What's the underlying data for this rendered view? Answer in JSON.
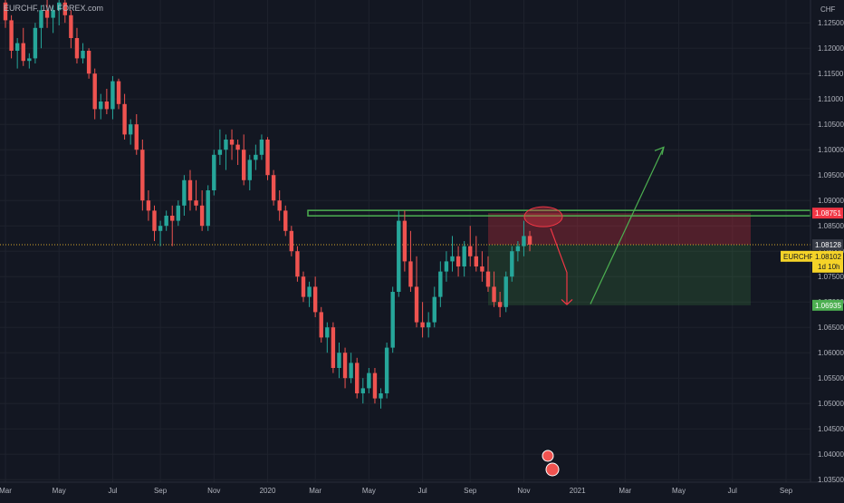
{
  "symbol_label": "EURCHF, 1W, FOREX.com",
  "currency_label": "CHF",
  "colors": {
    "background": "#131722",
    "up": "#26a69a",
    "down": "#ef5350",
    "text": "#b2b5be",
    "grid": "#1e222d"
  },
  "price_tags": {
    "tp_level": "1.08751",
    "last_price": "1.08128",
    "symbol": "EURCHF",
    "current": "1.08102",
    "countdown": "1d 10h",
    "stop_level": "1.06935"
  },
  "chart_data": {
    "type": "candlestick",
    "ylim": [
      1.0345,
      1.1295
    ],
    "y_ticks": [
      1.125,
      1.12,
      1.115,
      1.11,
      1.105,
      1.1,
      1.095,
      1.09,
      1.085,
      1.08,
      1.075,
      1.07,
      1.065,
      1.06,
      1.055,
      1.05,
      1.045,
      1.04,
      1.035
    ],
    "x_ticks": [
      {
        "label": "Mar",
        "i": 0
      },
      {
        "label": "May",
        "i": 9
      },
      {
        "label": "Jul",
        "i": 18
      },
      {
        "label": "Sep",
        "i": 26
      },
      {
        "label": "Nov",
        "i": 35
      },
      {
        "label": "2020",
        "i": 44
      },
      {
        "label": "Mar",
        "i": 52
      },
      {
        "label": "May",
        "i": 61
      },
      {
        "label": "Jul",
        "i": 70
      },
      {
        "label": "Sep",
        "i": 78
      },
      {
        "label": "Nov",
        "i": 87
      },
      {
        "label": "2021",
        "i": 96
      },
      {
        "label": "Mar",
        "i": 104
      },
      {
        "label": "May",
        "i": 113
      },
      {
        "label": "Jul",
        "i": 122
      },
      {
        "label": "Sep",
        "i": 131
      }
    ],
    "candles": [
      [
        1.129,
        1.1305,
        1.124,
        1.1255
      ],
      [
        1.1255,
        1.1265,
        1.118,
        1.1195
      ],
      [
        1.1195,
        1.122,
        1.116,
        1.121
      ],
      [
        1.121,
        1.124,
        1.1165,
        1.1175
      ],
      [
        1.1175,
        1.119,
        1.116,
        1.118
      ],
      [
        1.118,
        1.125,
        1.117,
        1.124
      ],
      [
        1.124,
        1.1285,
        1.12,
        1.1275
      ],
      [
        1.1275,
        1.13,
        1.124,
        1.126
      ],
      [
        1.126,
        1.1285,
        1.123,
        1.1275
      ],
      [
        1.1275,
        1.13,
        1.1245,
        1.129
      ],
      [
        1.129,
        1.131,
        1.125,
        1.1265
      ],
      [
        1.1265,
        1.1275,
        1.12,
        1.122
      ],
      [
        1.122,
        1.124,
        1.117,
        1.118
      ],
      [
        1.118,
        1.121,
        1.117,
        1.1195
      ],
      [
        1.1195,
        1.12,
        1.114,
        1.115
      ],
      [
        1.115,
        1.116,
        1.106,
        1.108
      ],
      [
        1.108,
        1.111,
        1.106,
        1.1095
      ],
      [
        1.1095,
        1.112,
        1.107,
        1.108
      ],
      [
        1.108,
        1.1145,
        1.106,
        1.1135
      ],
      [
        1.1135,
        1.114,
        1.108,
        1.109
      ],
      [
        1.109,
        1.111,
        1.102,
        1.103
      ],
      [
        1.103,
        1.106,
        1.101,
        1.105
      ],
      [
        1.105,
        1.107,
        1.099,
        1.1
      ],
      [
        1.1,
        1.102,
        1.088,
        1.09
      ],
      [
        1.09,
        1.092,
        1.086,
        1.088
      ],
      [
        1.088,
        1.089,
        1.082,
        1.084
      ],
      [
        1.084,
        1.086,
        1.081,
        1.085
      ],
      [
        1.085,
        1.088,
        1.084,
        1.087
      ],
      [
        1.087,
        1.089,
        1.081,
        1.086
      ],
      [
        1.086,
        1.09,
        1.085,
        1.089
      ],
      [
        1.089,
        1.095,
        1.087,
        1.094
      ],
      [
        1.094,
        1.096,
        1.088,
        1.09
      ],
      [
        1.09,
        1.094,
        1.088,
        1.089
      ],
      [
        1.089,
        1.092,
        1.084,
        1.085
      ],
      [
        1.085,
        1.093,
        1.084,
        1.092
      ],
      [
        1.092,
        1.1,
        1.091,
        1.099
      ],
      [
        1.099,
        1.104,
        1.097,
        1.1
      ],
      [
        1.1,
        1.103,
        1.096,
        1.102
      ],
      [
        1.102,
        1.104,
        1.098,
        1.101
      ],
      [
        1.101,
        1.102,
        1.097,
        1.1
      ],
      [
        1.1,
        1.103,
        1.093,
        1.094
      ],
      [
        1.094,
        1.099,
        1.092,
        1.098
      ],
      [
        1.098,
        1.101,
        1.096,
        1.099
      ],
      [
        1.099,
        1.103,
        1.098,
        1.102
      ],
      [
        1.102,
        1.1025,
        1.094,
        1.095
      ],
      [
        1.095,
        1.096,
        1.089,
        1.09
      ],
      [
        1.09,
        1.092,
        1.086,
        1.088
      ],
      [
        1.088,
        1.089,
        1.083,
        1.084
      ],
      [
        1.084,
        1.085,
        1.079,
        1.08
      ],
      [
        1.08,
        1.081,
        1.074,
        1.075
      ],
      [
        1.075,
        1.076,
        1.07,
        1.071
      ],
      [
        1.071,
        1.074,
        1.069,
        1.073
      ],
      [
        1.073,
        1.075,
        1.067,
        1.068
      ],
      [
        1.068,
        1.069,
        1.062,
        1.063
      ],
      [
        1.063,
        1.066,
        1.06,
        1.065
      ],
      [
        1.065,
        1.066,
        1.056,
        1.057
      ],
      [
        1.057,
        1.062,
        1.055,
        1.06
      ],
      [
        1.06,
        1.061,
        1.053,
        1.055
      ],
      [
        1.055,
        1.06,
        1.054,
        1.058
      ],
      [
        1.058,
        1.059,
        1.051,
        1.052
      ],
      [
        1.052,
        1.055,
        1.05,
        1.053
      ],
      [
        1.053,
        1.057,
        1.052,
        1.056
      ],
      [
        1.056,
        1.057,
        1.05,
        1.051
      ],
      [
        1.051,
        1.053,
        1.049,
        1.052
      ],
      [
        1.052,
        1.062,
        1.051,
        1.061
      ],
      [
        1.061,
        1.073,
        1.06,
        1.072
      ],
      [
        1.072,
        1.088,
        1.071,
        1.086
      ],
      [
        1.086,
        1.088,
        1.076,
        1.078
      ],
      [
        1.078,
        1.084,
        1.072,
        1.073
      ],
      [
        1.073,
        1.079,
        1.065,
        1.066
      ],
      [
        1.066,
        1.07,
        1.063,
        1.065
      ],
      [
        1.065,
        1.068,
        1.063,
        1.066
      ],
      [
        1.066,
        1.073,
        1.065,
        1.071
      ],
      [
        1.071,
        1.078,
        1.069,
        1.076
      ],
      [
        1.076,
        1.08,
        1.074,
        1.078
      ],
      [
        1.078,
        1.083,
        1.076,
        1.079
      ],
      [
        1.079,
        1.081,
        1.075,
        1.077
      ],
      [
        1.077,
        1.082,
        1.075,
        1.081
      ],
      [
        1.081,
        1.085,
        1.077,
        1.079
      ],
      [
        1.079,
        1.083,
        1.076,
        1.077
      ],
      [
        1.077,
        1.08,
        1.074,
        1.076
      ],
      [
        1.076,
        1.079,
        1.072,
        1.073
      ],
      [
        1.073,
        1.076,
        1.069,
        1.07
      ],
      [
        1.07,
        1.072,
        1.067,
        1.069
      ],
      [
        1.069,
        1.076,
        1.068,
        1.075
      ],
      [
        1.075,
        1.081,
        1.074,
        1.08
      ],
      [
        1.08,
        1.082,
        1.078,
        1.081
      ],
      [
        1.081,
        1.086,
        1.079,
        1.083
      ],
      [
        1.083,
        1.084,
        1.08,
        1.0813
      ]
    ]
  }
}
